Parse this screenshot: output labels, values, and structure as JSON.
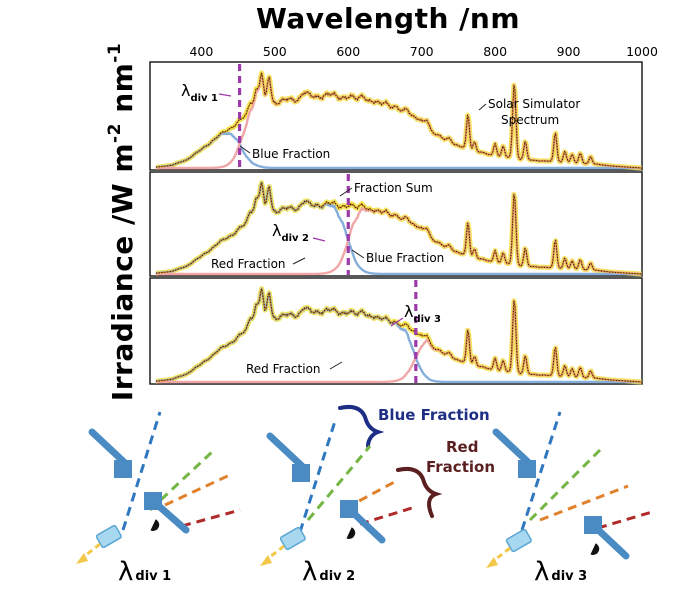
{
  "chart_data": {
    "type": "line",
    "title": "",
    "xlabel": "Wavelength /nm",
    "ylabel": "Irradiance /W m⁻² nm⁻¹",
    "ylabel_parts": {
      "base": "Irradiance /W m",
      "exp1": "-2",
      "mid": " nm",
      "exp2": "-1"
    },
    "xlim": [
      330,
      1000
    ],
    "x_ticks": [
      400,
      500,
      600,
      700,
      800,
      900,
      1000
    ],
    "x_tick_labels": [
      "400",
      "500",
      "600",
      "700",
      "800",
      "900",
      "1000"
    ],
    "ylim": [
      0,
      1
    ],
    "y_ticks": [],
    "colors": {
      "simulator": "#d98a1e",
      "fraction_sum": "#f2e34a",
      "blue_fraction": "#86aedb",
      "red_fraction": "#f0a6a6",
      "teal_overlap": "#66b6b4",
      "divider": "#9b3aa8",
      "blue_title": "#1f2e85",
      "red_title": "#5a1f1f"
    },
    "panels": [
      {
        "lambda_div_nm": 452,
        "lambda_label": {
          "base": "λ",
          "sub": "div 1"
        },
        "labels": {
          "solar_simulator": [
            "Solar Simulator",
            "Spectrum"
          ],
          "blue_fraction": "Blue Fraction"
        }
      },
      {
        "lambda_div_nm": 600,
        "lambda_label": {
          "base": "λ",
          "sub": "div 2"
        },
        "labels": {
          "fraction_sum": "Fraction Sum",
          "red_fraction": "Red Fraction",
          "blue_fraction": "Blue Fraction"
        }
      },
      {
        "lambda_div_nm": 692,
        "lambda_label": {
          "base": "λ",
          "sub": "div 3"
        },
        "labels": {
          "red_fraction": "Red Fraction"
        }
      }
    ],
    "spectrum": {
      "continuum_points_nm": [
        [
          340,
          0.01
        ],
        [
          360,
          0.03
        ],
        [
          380,
          0.09
        ],
        [
          400,
          0.2
        ],
        [
          420,
          0.33
        ],
        [
          440,
          0.44
        ],
        [
          460,
          0.56
        ],
        [
          480,
          0.66
        ],
        [
          500,
          0.72
        ],
        [
          520,
          0.74
        ],
        [
          540,
          0.76
        ],
        [
          560,
          0.79
        ],
        [
          580,
          0.79
        ],
        [
          600,
          0.77
        ],
        [
          620,
          0.73
        ],
        [
          640,
          0.7
        ],
        [
          660,
          0.66
        ],
        [
          680,
          0.6
        ],
        [
          700,
          0.5
        ],
        [
          720,
          0.36
        ],
        [
          740,
          0.27
        ],
        [
          760,
          0.21
        ],
        [
          780,
          0.17
        ],
        [
          800,
          0.13
        ],
        [
          820,
          0.11
        ],
        [
          840,
          0.09
        ],
        [
          860,
          0.08
        ],
        [
          880,
          0.07
        ],
        [
          900,
          0.06
        ],
        [
          920,
          0.05
        ],
        [
          940,
          0.04
        ],
        [
          960,
          0.02
        ],
        [
          980,
          0.01
        ],
        [
          1000,
          0.0
        ]
      ],
      "lines_nm": [
        [
          467,
          0.12,
          3
        ],
        [
          475,
          0.22,
          3
        ],
        [
          482,
          0.35,
          2.5
        ],
        [
          492,
          0.3,
          2.5
        ],
        [
          540,
          0.06,
          4
        ],
        [
          620,
          0.07,
          4
        ],
        [
          650,
          0.05,
          4
        ],
        [
          680,
          0.06,
          3
        ],
        [
          707,
          0.08,
          3
        ],
        [
          738,
          0.05,
          3
        ],
        [
          763,
          0.38,
          2
        ],
        [
          772,
          0.1,
          2
        ],
        [
          800,
          0.14,
          2
        ],
        [
          811,
          0.12,
          2
        ],
        [
          826,
          0.82,
          2.2
        ],
        [
          841,
          0.2,
          2
        ],
        [
          882,
          0.32,
          2
        ],
        [
          895,
          0.12,
          2
        ],
        [
          905,
          0.09,
          2
        ],
        [
          916,
          0.11,
          2
        ],
        [
          930,
          0.08,
          2
        ]
      ]
    },
    "lower_schematic": {
      "lambda_labels": [
        {
          "base": "λ",
          "sub": "div 1"
        },
        {
          "base": "λ",
          "sub": "div 2"
        },
        {
          "base": "λ",
          "sub": "div 3"
        }
      ],
      "blue_fraction_title": "Blue Fraction",
      "red_fraction_title": [
        "Red",
        "Fraction"
      ]
    }
  }
}
